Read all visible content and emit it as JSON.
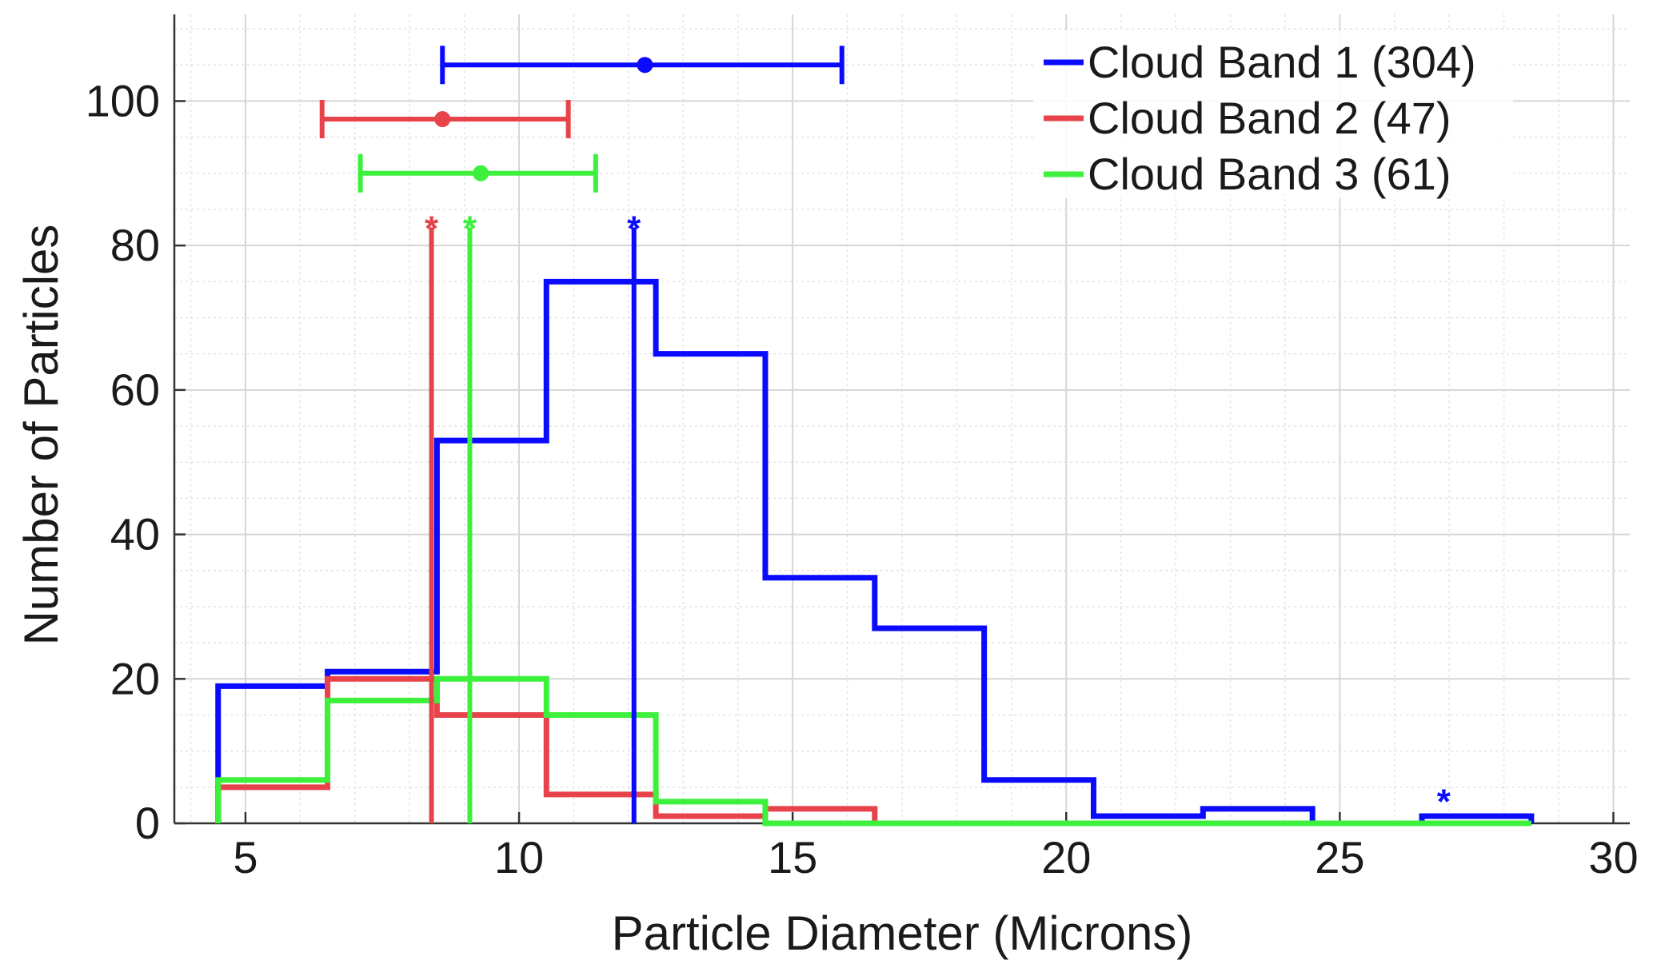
{
  "chart_data": {
    "type": "histogram",
    "xlabel": "Particle Diameter (Microns)",
    "ylabel": "Number of Particles",
    "xlim": [
      3.7,
      30.3
    ],
    "ylim": [
      0,
      112
    ],
    "xticks": [
      "5",
      "10",
      "15",
      "20",
      "25",
      "30"
    ],
    "yticks": [
      "0",
      "20",
      "40",
      "60",
      "80",
      "100"
    ],
    "grid": true,
    "minor_grid": true,
    "legend_position": "top-right",
    "bin_edges": [
      4.5,
      6.5,
      8.5,
      10.5,
      12.5,
      14.5,
      16.5,
      18.5,
      20.5,
      22.5,
      24.5,
      26.5,
      28.5
    ],
    "series": [
      {
        "name": "Cloud Band 1 (304)",
        "color": "#0a0aff",
        "counts": [
          19,
          21,
          53,
          75,
          65,
          34,
          27,
          6,
          1,
          2,
          0,
          1
        ],
        "median": 12.1,
        "mean": 12.3,
        "range": [
          8.6,
          15.9
        ],
        "range_y": 105
      },
      {
        "name": "Cloud Band 2 (47)",
        "color": "#e8424a",
        "counts": [
          5,
          20,
          15,
          4,
          1,
          2,
          0,
          0,
          0,
          0,
          0,
          0
        ],
        "median": 8.4,
        "mean": 8.6,
        "range": [
          6.4,
          10.9
        ],
        "range_y": 97.5
      },
      {
        "name": "Cloud Band 3 (61)",
        "color": "#3cf03c",
        "counts": [
          6,
          17,
          20,
          15,
          3,
          0,
          0,
          0,
          0,
          0,
          0,
          0
        ],
        "median": 9.1,
        "mean": 9.3,
        "range": [
          7.1,
          11.4
        ],
        "range_y": 90
      }
    ],
    "annotations": [
      {
        "text": "*",
        "x": 26.9,
        "y": 2.5,
        "color": "#0a0aff"
      }
    ]
  }
}
